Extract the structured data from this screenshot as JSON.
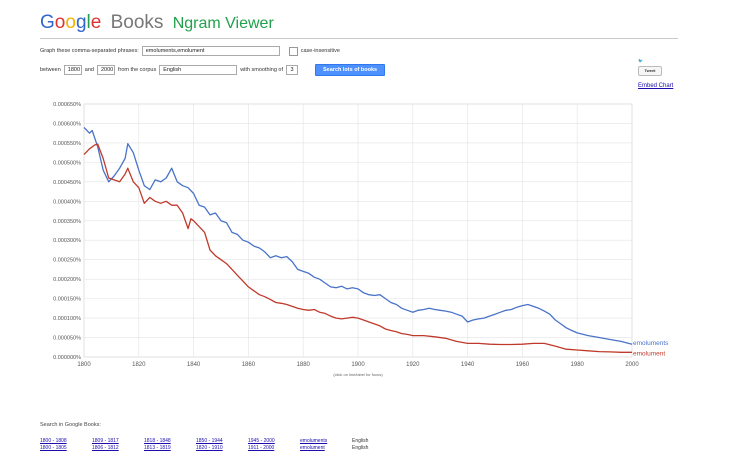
{
  "header": {
    "logo_google": [
      "G",
      "o",
      "o",
      "g",
      "l",
      "e"
    ],
    "logo_books": "Books",
    "logo_ngram": "Ngram Viewer"
  },
  "form": {
    "phrase_label": "Graph these comma-separated phrases:",
    "phrase_value": "emoluments,emolument",
    "case_label": "case-insensitive",
    "between_label": "between",
    "start_year": "1800",
    "and_label": "and",
    "end_year": "2000",
    "corpus_label": "from the corpus",
    "corpus_value": "English",
    "smoothing_label": "with smoothing of",
    "smoothing_value": "3",
    "search_button": "Search lots of books"
  },
  "side": {
    "tweet_label": "Tweet",
    "embed_label": "Embed Chart"
  },
  "chart_data": {
    "type": "line",
    "xlabel": "",
    "ylabel": "",
    "hint": "(click on line/label for focus)",
    "xlim": [
      1800,
      2000
    ],
    "ylim": [
      0,
      0.00065
    ],
    "xticks": [
      1800,
      1820,
      1840,
      1860,
      1880,
      1900,
      1920,
      1940,
      1960,
      1980,
      2000
    ],
    "yticks": [
      "0.000000%",
      "0.000050%",
      "0.000100%",
      "0.000150%",
      "0.000200%",
      "0.000250%",
      "0.000300%",
      "0.000350%",
      "0.000400%",
      "0.000450%",
      "0.000500%",
      "0.000550%",
      "0.000600%",
      "0.000650%"
    ],
    "grid": true,
    "series": [
      {
        "name": "emoluments",
        "color": "#4a73c9",
        "points": [
          [
            1800,
            0.00059
          ],
          [
            1802,
            0.000575
          ],
          [
            1803,
            0.000582
          ],
          [
            1805,
            0.00054
          ],
          [
            1807,
            0.00048
          ],
          [
            1809,
            0.00045
          ],
          [
            1811,
            0.000465
          ],
          [
            1813,
            0.000485
          ],
          [
            1815,
            0.00051
          ],
          [
            1816,
            0.000548
          ],
          [
            1818,
            0.000525
          ],
          [
            1820,
            0.00048
          ],
          [
            1822,
            0.00044
          ],
          [
            1824,
            0.00043
          ],
          [
            1826,
            0.000455
          ],
          [
            1828,
            0.00045
          ],
          [
            1830,
            0.00046
          ],
          [
            1832,
            0.000485
          ],
          [
            1834,
            0.00045
          ],
          [
            1836,
            0.00044
          ],
          [
            1838,
            0.000435
          ],
          [
            1840,
            0.00042
          ],
          [
            1842,
            0.00039
          ],
          [
            1844,
            0.000385
          ],
          [
            1846,
            0.000365
          ],
          [
            1848,
            0.00037
          ],
          [
            1850,
            0.00035
          ],
          [
            1852,
            0.000345
          ],
          [
            1854,
            0.00032
          ],
          [
            1856,
            0.000315
          ],
          [
            1858,
            0.0003
          ],
          [
            1860,
            0.000295
          ],
          [
            1862,
            0.000285
          ],
          [
            1864,
            0.00028
          ],
          [
            1866,
            0.00027
          ],
          [
            1868,
            0.000255
          ],
          [
            1870,
            0.00026
          ],
          [
            1872,
            0.000255
          ],
          [
            1874,
            0.000258
          ],
          [
            1876,
            0.000245
          ],
          [
            1878,
            0.000225
          ],
          [
            1880,
            0.00022
          ],
          [
            1882,
            0.000215
          ],
          [
            1884,
            0.000205
          ],
          [
            1886,
            0.0002
          ],
          [
            1888,
            0.00019
          ],
          [
            1890,
            0.00018
          ],
          [
            1892,
            0.000178
          ],
          [
            1894,
            0.000182
          ],
          [
            1896,
            0.000175
          ],
          [
            1898,
            0.000178
          ],
          [
            1900,
            0.000175
          ],
          [
            1902,
            0.000165
          ],
          [
            1904,
            0.00016
          ],
          [
            1906,
            0.000158
          ],
          [
            1908,
            0.00016
          ],
          [
            1910,
            0.00015
          ],
          [
            1912,
            0.00014
          ],
          [
            1914,
            0.000135
          ],
          [
            1916,
            0.000125
          ],
          [
            1918,
            0.00012
          ],
          [
            1920,
            0.000115
          ],
          [
            1922,
            0.00012
          ],
          [
            1924,
            0.000122
          ],
          [
            1926,
            0.000125
          ],
          [
            1928,
            0.000122
          ],
          [
            1930,
            0.00012
          ],
          [
            1932,
            0.000118
          ],
          [
            1934,
            0.000115
          ],
          [
            1936,
            0.00011
          ],
          [
            1938,
            0.000105
          ],
          [
            1940,
            9e-05
          ],
          [
            1942,
            9.5e-05
          ],
          [
            1944,
            9.8e-05
          ],
          [
            1946,
            0.0001
          ],
          [
            1948,
            0.000105
          ],
          [
            1950,
            0.00011
          ],
          [
            1952,
            0.000115
          ],
          [
            1954,
            0.00012
          ],
          [
            1956,
            0.000122
          ],
          [
            1958,
            0.000128
          ],
          [
            1960,
            0.000132
          ],
          [
            1962,
            0.000135
          ],
          [
            1964,
            0.00013
          ],
          [
            1966,
            0.000125
          ],
          [
            1968,
            0.000118
          ],
          [
            1970,
            0.00011
          ],
          [
            1972,
            9.5e-05
          ],
          [
            1974,
            8.5e-05
          ],
          [
            1976,
            7.5e-05
          ],
          [
            1978,
            6.8e-05
          ],
          [
            1980,
            6.2e-05
          ],
          [
            1984,
            5.5e-05
          ],
          [
            1988,
            5e-05
          ],
          [
            1992,
            4.5e-05
          ],
          [
            1996,
            4e-05
          ],
          [
            2000,
            3.3e-05
          ]
        ]
      },
      {
        "name": "emolument",
        "color": "#c03a2b",
        "points": [
          [
            1800,
            0.00052
          ],
          [
            1802,
            0.000535
          ],
          [
            1804,
            0.000545
          ],
          [
            1805,
            0.000547
          ],
          [
            1807,
            0.00051
          ],
          [
            1809,
            0.00046
          ],
          [
            1811,
            0.000455
          ],
          [
            1813,
            0.00045
          ],
          [
            1815,
            0.00047
          ],
          [
            1816,
            0.000485
          ],
          [
            1818,
            0.00045
          ],
          [
            1820,
            0.000435
          ],
          [
            1822,
            0.000395
          ],
          [
            1824,
            0.00041
          ],
          [
            1826,
            0.0004
          ],
          [
            1828,
            0.000395
          ],
          [
            1830,
            0.0004
          ],
          [
            1832,
            0.00039
          ],
          [
            1834,
            0.00039
          ],
          [
            1836,
            0.00037
          ],
          [
            1838,
            0.00033
          ],
          [
            1839,
            0.000355
          ],
          [
            1840,
            0.00035
          ],
          [
            1842,
            0.000335
          ],
          [
            1844,
            0.00032
          ],
          [
            1846,
            0.000275
          ],
          [
            1848,
            0.00026
          ],
          [
            1850,
            0.00025
          ],
          [
            1852,
            0.00024
          ],
          [
            1854,
            0.000225
          ],
          [
            1856,
            0.00021
          ],
          [
            1858,
            0.000195
          ],
          [
            1860,
            0.00018
          ],
          [
            1862,
            0.00017
          ],
          [
            1864,
            0.00016
          ],
          [
            1866,
            0.000155
          ],
          [
            1868,
            0.000148
          ],
          [
            1870,
            0.00014
          ],
          [
            1872,
            0.000138
          ],
          [
            1874,
            0.000135
          ],
          [
            1876,
            0.00013
          ],
          [
            1878,
            0.000125
          ],
          [
            1880,
            0.000122
          ],
          [
            1882,
            0.00012
          ],
          [
            1884,
            0.000122
          ],
          [
            1886,
            0.000115
          ],
          [
            1888,
            0.000112
          ],
          [
            1890,
            0.000105
          ],
          [
            1892,
            0.0001
          ],
          [
            1894,
            9.8e-05
          ],
          [
            1896,
            0.0001
          ],
          [
            1898,
            0.000102
          ],
          [
            1900,
            0.0001
          ],
          [
            1902,
            9.5e-05
          ],
          [
            1904,
            9e-05
          ],
          [
            1906,
            8.5e-05
          ],
          [
            1908,
            8e-05
          ],
          [
            1910,
            7.2e-05
          ],
          [
            1912,
            6.8e-05
          ],
          [
            1914,
            6.5e-05
          ],
          [
            1916,
            6e-05
          ],
          [
            1918,
            5.8e-05
          ],
          [
            1920,
            5.5e-05
          ],
          [
            1924,
            5.5e-05
          ],
          [
            1928,
            5.2e-05
          ],
          [
            1932,
            4.8e-05
          ],
          [
            1936,
            4e-05
          ],
          [
            1940,
            3.5e-05
          ],
          [
            1944,
            3.5e-05
          ],
          [
            1948,
            3.3e-05
          ],
          [
            1952,
            3.2e-05
          ],
          [
            1956,
            3.2e-05
          ],
          [
            1960,
            3.3e-05
          ],
          [
            1964,
            3.5e-05
          ],
          [
            1968,
            3.5e-05
          ],
          [
            1972,
            2.8e-05
          ],
          [
            1976,
            2e-05
          ],
          [
            1980,
            1.8e-05
          ],
          [
            1984,
            1.6e-05
          ],
          [
            1988,
            1.4e-05
          ],
          [
            1992,
            1.3e-05
          ],
          [
            1996,
            1.2e-05
          ],
          [
            2000,
            1.2e-05
          ]
        ]
      }
    ]
  },
  "search_books": {
    "title": "Search in Google Books:",
    "rows": [
      [
        "1800 - 1808",
        "1809 - 1817",
        "1818 - 1848",
        "1850 - 1944",
        "1945 - 2000",
        "emoluments",
        "English"
      ],
      [
        "1800 - 1805",
        "1806 - 1812",
        "1813 - 1819",
        "1820 - 1910",
        "1911 - 2000",
        "emolument",
        "English"
      ]
    ]
  }
}
